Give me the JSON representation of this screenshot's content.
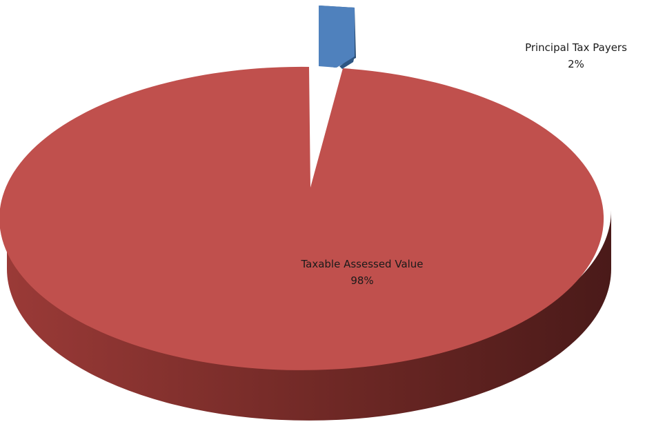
{
  "chart_data": {
    "type": "pie",
    "style": "3d-exploded",
    "title": "",
    "legend": "none",
    "slices": [
      {
        "name": "Principal Tax Payers",
        "percent_label": "2%",
        "value": 2,
        "color": "#4f81bd",
        "exploded": true
      },
      {
        "name": "Taxable Assessed Value",
        "percent_label": "98%",
        "value": 98,
        "color": "#c0504d",
        "exploded": true
      }
    ]
  }
}
